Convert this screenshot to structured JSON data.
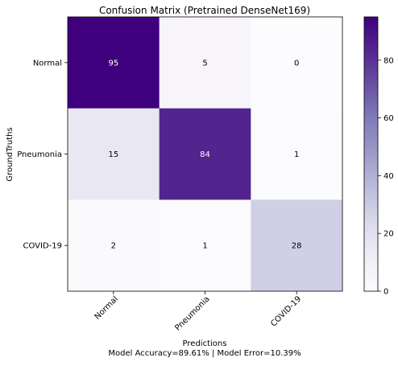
{
  "chart_data": {
    "type": "heatmap",
    "title": "Confusion Matrix (Pretrained DenseNet169)",
    "xlabel": "Predictions",
    "ylabel": "GroundTruths",
    "footer": "Model Accuracy=89.61% | Model Error=10.39%",
    "rows": [
      "Normal",
      "Pneumonia",
      "COVID-19"
    ],
    "columns": [
      "Normal",
      "Pneumonia",
      "COVID-19"
    ],
    "values": [
      [
        95,
        5,
        0
      ],
      [
        15,
        84,
        1
      ],
      [
        2,
        1,
        28
      ]
    ],
    "colormap": "Purples",
    "colorbar": {
      "range": [
        0,
        95
      ],
      "ticks": [
        0,
        20,
        40,
        60,
        80
      ]
    },
    "colors": {
      "low": "#fcfbfd",
      "high": "#3f007d"
    }
  }
}
